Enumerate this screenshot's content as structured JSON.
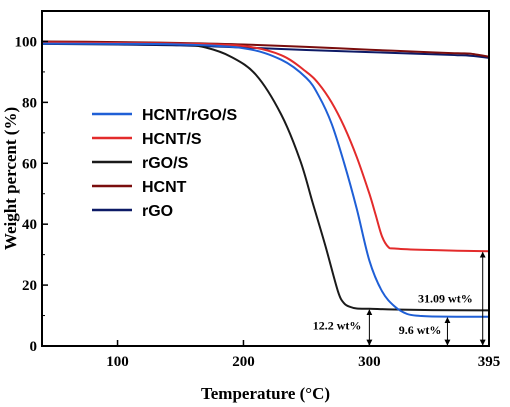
{
  "chart_data": {
    "type": "line",
    "title": "",
    "xlabel": "Temperature (°C)",
    "ylabel": "Weight percent (%)",
    "xlim": [
      40,
      395
    ],
    "ylim": [
      0,
      110
    ],
    "xticks": [
      100,
      200,
      300,
      395
    ],
    "xtick_labels": [
      "100",
      "200",
      "300",
      "395"
    ],
    "yticks": [
      0,
      20,
      40,
      60,
      80,
      100
    ],
    "ytick_labels": [
      "0",
      "20",
      "40",
      "60",
      "80",
      "100"
    ],
    "grid": false,
    "legend_position": "center-left",
    "series": [
      {
        "name": "HCNT/rGO/S",
        "color": "#1f5fd6",
        "x": [
          40,
          100,
          150,
          200,
          230,
          250,
          260,
          270,
          280,
          290,
          300,
          310,
          320,
          330,
          340,
          350,
          370,
          395
        ],
        "y": [
          99.3,
          99.2,
          99.0,
          97.8,
          94,
          88,
          82,
          73,
          60,
          45,
          28,
          18,
          13,
          10.5,
          9.9,
          9.7,
          9.6,
          9.6
        ]
      },
      {
        "name": "HCNT/S",
        "color": "#e32b2b",
        "x": [
          40,
          100,
          150,
          200,
          230,
          250,
          260,
          270,
          280,
          290,
          300,
          305,
          310,
          315,
          320,
          340,
          370,
          395
        ],
        "y": [
          99.7,
          99.5,
          99.3,
          98.5,
          95.5,
          90,
          86,
          80,
          72,
          62,
          50,
          43,
          36,
          32.5,
          32,
          31.6,
          31.3,
          31.1
        ]
      },
      {
        "name": "rGO/S",
        "color": "#1a1a1a",
        "x": [
          40,
          100,
          150,
          170,
          190,
          210,
          230,
          245,
          255,
          265,
          275,
          280,
          285,
          290,
          300,
          320,
          350,
          395
        ],
        "y": [
          99.3,
          99.2,
          99.0,
          98,
          95,
          89,
          76,
          61,
          47,
          33,
          18,
          14,
          12.8,
          12.3,
          12.2,
          12.0,
          11.8,
          11.7
        ]
      },
      {
        "name": "HCNT",
        "color": "#7a0d0d",
        "x": [
          40,
          100,
          150,
          200,
          250,
          300,
          350,
          370,
          380,
          395
        ],
        "y": [
          100,
          99.8,
          99.5,
          99.0,
          98.2,
          97.3,
          96.4,
          96.1,
          96.0,
          95.0
        ]
      },
      {
        "name": "rGO",
        "color": "#0d1a66",
        "x": [
          40,
          100,
          150,
          200,
          250,
          300,
          350,
          370,
          380,
          395
        ],
        "y": [
          99.2,
          99.0,
          98.7,
          98.0,
          97.2,
          96.5,
          95.8,
          95.5,
          95.3,
          94.6
        ]
      }
    ],
    "annotations": [
      {
        "text": "31.09 wt%",
        "arrow_x": 390,
        "from": 0,
        "to": 31.09
      },
      {
        "text": "12.2 wt%",
        "arrow_x": 300,
        "from": 0,
        "to": 12.2
      },
      {
        "text": "9.6 wt%",
        "arrow_x": 362,
        "from": 0,
        "to": 9.6
      }
    ]
  }
}
